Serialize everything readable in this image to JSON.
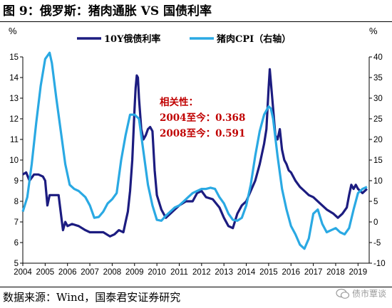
{
  "title": "图 9：俄罗斯：猪肉通胀 VS 国债利率",
  "source": "数据来源：Wind，国泰君安证券研究",
  "watermark": "债市覃谈",
  "colors": {
    "bond": "#1c1c80",
    "cpi": "#2aa9e3",
    "annotation": "#c00000"
  },
  "chart_data": {
    "type": "line",
    "title": "",
    "left_axis": {
      "unit": "%",
      "range": [
        5,
        15
      ],
      "ticks": [
        5,
        6,
        7,
        8,
        9,
        10,
        11,
        12,
        13,
        14,
        15
      ]
    },
    "right_axis": {
      "unit": "%",
      "range": [
        -10,
        40
      ],
      "ticks": [
        -10,
        -5,
        0,
        5,
        10,
        15,
        20,
        25,
        30,
        35,
        40
      ]
    },
    "x_axis": {
      "range": [
        2004,
        2019.5
      ],
      "ticks": [
        2004,
        2005,
        2006,
        2007,
        2008,
        2009,
        2010,
        2011,
        2012,
        2013,
        2014,
        2015,
        2016,
        2017,
        2018,
        2019
      ]
    },
    "grid": false,
    "legend_position": "top",
    "series": [
      {
        "name": "10Y俄债利率",
        "axis": "left",
        "x": [
          2004.0,
          2004.15,
          2004.3,
          2004.5,
          2004.7,
          2004.9,
          2005.0,
          2005.1,
          2005.2,
          2005.3,
          2005.5,
          2005.6,
          2005.75,
          2005.8,
          2005.9,
          2006.0,
          2006.2,
          2006.5,
          2006.8,
          2007.0,
          2007.3,
          2007.6,
          2007.9,
          2008.1,
          2008.3,
          2008.5,
          2008.6,
          2008.7,
          2008.8,
          2008.9,
          2009.0,
          2009.05,
          2009.1,
          2009.15,
          2009.2,
          2009.3,
          2009.4,
          2009.5,
          2009.6,
          2009.7,
          2009.8,
          2009.9,
          2010.0,
          2010.2,
          2010.4,
          2010.6,
          2010.8,
          2011.0,
          2011.3,
          2011.6,
          2011.8,
          2012.0,
          2012.2,
          2012.5,
          2012.8,
          2013.0,
          2013.2,
          2013.4,
          2013.6,
          2013.8,
          2014.0,
          2014.2,
          2014.4,
          2014.6,
          2014.8,
          2014.9,
          2015.0,
          2015.05,
          2015.1,
          2015.2,
          2015.3,
          2015.4,
          2015.5,
          2015.6,
          2015.7,
          2015.8,
          2015.9,
          2016.0,
          2016.2,
          2016.4,
          2016.6,
          2016.8,
          2017.0,
          2017.3,
          2017.6,
          2017.9,
          2018.1,
          2018.3,
          2018.5,
          2018.6,
          2018.7,
          2018.8,
          2018.9,
          2019.0,
          2019.2,
          2019.4
        ],
        "y": [
          9.3,
          9.4,
          9.0,
          9.3,
          9.3,
          9.2,
          9.0,
          7.8,
          8.3,
          8.3,
          8.3,
          8.3,
          7.0,
          6.6,
          7.0,
          6.8,
          6.9,
          6.8,
          6.6,
          6.5,
          6.5,
          6.5,
          6.3,
          6.4,
          6.6,
          6.5,
          7.0,
          7.5,
          8.5,
          10.0,
          12.5,
          13.5,
          14.1,
          14.0,
          13.0,
          11.5,
          11.0,
          11.2,
          11.5,
          11.6,
          11.4,
          9.5,
          8.3,
          7.6,
          7.2,
          7.4,
          7.6,
          7.8,
          8.0,
          8.0,
          8.4,
          8.5,
          8.2,
          8.1,
          7.7,
          7.2,
          6.8,
          6.7,
          7.4,
          7.8,
          8.0,
          8.5,
          9.0,
          9.8,
          10.8,
          11.5,
          13.5,
          14.4,
          13.8,
          12.5,
          11.2,
          11.0,
          11.5,
          10.5,
          10.0,
          9.8,
          9.5,
          9.4,
          9.0,
          8.7,
          8.5,
          8.3,
          8.2,
          7.9,
          7.6,
          7.4,
          7.2,
          7.4,
          7.7,
          8.3,
          8.8,
          8.6,
          8.8,
          8.6,
          8.4,
          8.6
        ]
      },
      {
        "name": "猪肉CPI（右轴）",
        "axis": "right",
        "x": [
          2004.0,
          2004.2,
          2004.4,
          2004.6,
          2004.8,
          2005.0,
          2005.2,
          2005.3,
          2005.5,
          2005.7,
          2005.9,
          2006.1,
          2006.3,
          2006.5,
          2006.8,
          2007.0,
          2007.2,
          2007.4,
          2007.6,
          2007.8,
          2008.0,
          2008.2,
          2008.4,
          2008.6,
          2008.8,
          2009.0,
          2009.2,
          2009.4,
          2009.6,
          2009.8,
          2010.0,
          2010.2,
          2010.4,
          2010.6,
          2010.8,
          2011.0,
          2011.2,
          2011.4,
          2011.6,
          2011.8,
          2012.0,
          2012.2,
          2012.4,
          2012.6,
          2012.8,
          2013.0,
          2013.2,
          2013.4,
          2013.6,
          2013.8,
          2014.0,
          2014.2,
          2014.4,
          2014.6,
          2014.8,
          2015.0,
          2015.1,
          2015.2,
          2015.4,
          2015.6,
          2015.8,
          2016.0,
          2016.2,
          2016.4,
          2016.6,
          2016.8,
          2017.0,
          2017.2,
          2017.4,
          2017.6,
          2017.8,
          2018.0,
          2018.2,
          2018.4,
          2018.6,
          2018.8,
          2019.0,
          2019.2,
          2019.4
        ],
        "y": [
          2.5,
          6.0,
          14.0,
          24.0,
          33.0,
          39.5,
          41.0,
          38.5,
          30.0,
          22.0,
          14.0,
          9.0,
          8.0,
          7.5,
          6.0,
          4.0,
          1.0,
          1.2,
          2.5,
          4.5,
          5.5,
          7.0,
          15.0,
          21.0,
          26.0,
          26.0,
          25.0,
          17.0,
          9.0,
          4.0,
          0.5,
          0.3,
          1.5,
          2.5,
          3.5,
          4.0,
          5.0,
          6.0,
          7.0,
          7.5,
          8.0,
          8.0,
          8.3,
          8.0,
          6.0,
          4.5,
          2.0,
          0.5,
          0.3,
          1.0,
          4.0,
          9.0,
          16.0,
          22.0,
          26.0,
          28.0,
          27.5,
          25.0,
          16.0,
          8.0,
          3.0,
          -1.0,
          -3.0,
          -5.5,
          -6.5,
          -4.0,
          2.0,
          3.0,
          -0.5,
          -2.5,
          -2.0,
          -1.5,
          -2.5,
          -3.0,
          -1.5,
          3.0,
          7.0,
          8.0,
          8.5
        ]
      }
    ],
    "annotations": [
      "相关性：",
      "2004至今：0.368",
      "2008至今：0.591"
    ]
  }
}
